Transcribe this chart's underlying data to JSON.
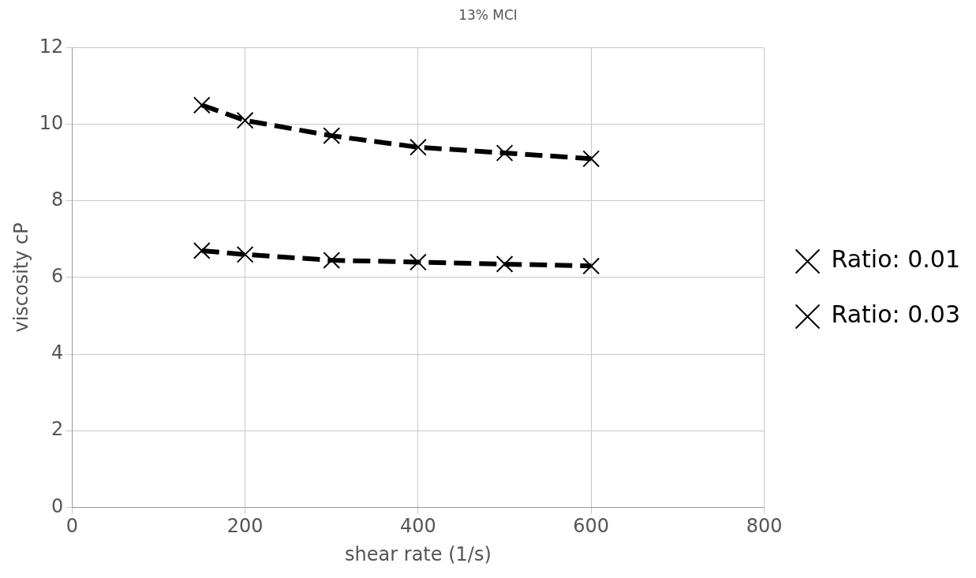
{
  "chart_data": {
    "type": "line",
    "title": "13% MCI",
    "xlabel": "shear rate (1/s)",
    "ylabel": "viscosity cP",
    "x": [
      150,
      200,
      300,
      400,
      500,
      600
    ],
    "series": [
      {
        "name": "Ratio: 0.01",
        "color": "#000000",
        "marker": "cross",
        "values": [
          10.5,
          10.1,
          9.7,
          9.4,
          9.25,
          9.1
        ]
      },
      {
        "name": "Ratio: 0.03",
        "color": "#000000",
        "marker": "cross",
        "values": [
          6.7,
          6.6,
          6.45,
          6.4,
          6.35,
          6.3
        ]
      }
    ],
    "xlim": [
      0,
      800
    ],
    "xticks": [
      0,
      200,
      400,
      600,
      800
    ],
    "ylim": [
      0,
      12
    ],
    "yticks": [
      0,
      2,
      4,
      6,
      8,
      10,
      12
    ],
    "grid": true,
    "legend": "right",
    "line_style": "dashed"
  }
}
